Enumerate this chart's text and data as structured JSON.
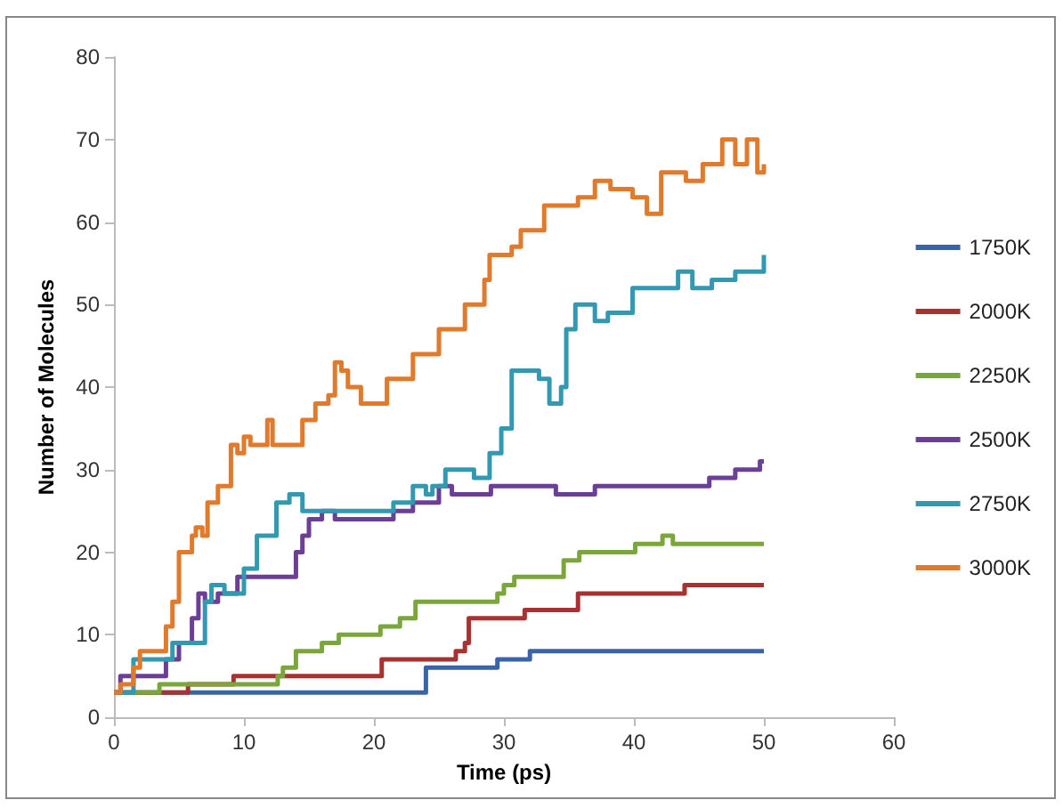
{
  "chart_data": {
    "type": "step",
    "xlabel": "Time (ps)",
    "ylabel": "Number of Molecules",
    "xlim": [
      0,
      60
    ],
    "xticks": [
      0,
      10,
      20,
      30,
      40,
      50,
      60
    ],
    "ylim": [
      0,
      80
    ],
    "yticks": [
      0,
      10,
      20,
      30,
      40,
      50,
      60,
      70,
      80
    ],
    "grid": false,
    "legend": "right",
    "marker": "none",
    "line_style": "solid",
    "series": [
      {
        "name": "1750K",
        "color": "#3a64a8",
        "x": [
          0,
          24,
          29.5,
          32,
          50
        ],
        "values": [
          3,
          6,
          7,
          8,
          8
        ]
      },
      {
        "name": "2000K",
        "color": "#a83232",
        "x": [
          0,
          5.7,
          9.2,
          20.6,
          26.3,
          27,
          27.3,
          31.6,
          35.7,
          43.9,
          50
        ],
        "values": [
          3,
          4,
          5,
          7,
          8,
          9,
          12,
          13,
          15,
          16,
          16
        ]
      },
      {
        "name": "2250K",
        "color": "#7aa63c",
        "x": [
          0,
          3.5,
          12.6,
          13,
          14,
          16,
          17.3,
          20.5,
          22,
          23.2,
          29.5,
          30,
          30.8,
          34.6,
          35.8,
          40.1,
          42.2,
          43,
          50
        ],
        "values": [
          3,
          4,
          5,
          6,
          8,
          9,
          10,
          11,
          12,
          14,
          15,
          16,
          17,
          19,
          20,
          21,
          22,
          21,
          21
        ]
      },
      {
        "name": "2500K",
        "color": "#6a3f95",
        "x": [
          0,
          0.5,
          3.5,
          4,
          5,
          6,
          6.5,
          7,
          8,
          9.5,
          14,
          14.5,
          15,
          16,
          17,
          21.5,
          23,
          25,
          26,
          29,
          34,
          37,
          45.8,
          47.8,
          49.7,
          50
        ],
        "values": [
          3,
          5,
          5,
          7,
          9,
          12,
          15,
          14,
          15,
          17,
          20,
          22,
          24,
          25,
          24,
          25,
          26,
          28,
          27,
          28,
          27,
          28,
          29,
          30,
          31,
          31
        ]
      },
      {
        "name": "2750K",
        "color": "#3399b0",
        "x": [
          0,
          1.5,
          4.5,
          7,
          7.5,
          8.5,
          10,
          11,
          12.5,
          13.5,
          14.5,
          21.5,
          23,
          24,
          24.5,
          25.5,
          27.2,
          27.7,
          28.9,
          29.8,
          30.6,
          32.7,
          33.5,
          34.4,
          34.8,
          35.5,
          37,
          38,
          39.9,
          43.4,
          44.5,
          46,
          47.8,
          50
        ],
        "values": [
          3,
          7,
          9,
          14,
          16,
          15,
          18,
          22,
          26,
          27,
          25,
          26,
          28,
          27,
          28,
          30,
          30,
          29,
          32,
          35,
          42,
          41,
          38,
          40,
          47,
          50,
          48,
          49,
          52,
          54,
          52,
          53,
          54,
          56
        ]
      },
      {
        "name": "3000K",
        "color": "#e07a2c",
        "x": [
          0,
          0.5,
          1.5,
          2,
          3.7,
          4,
          4.5,
          5,
          6,
          6.3,
          6.8,
          7.2,
          8,
          9,
          9.5,
          10,
          10.5,
          11.8,
          12.2,
          14.5,
          15.5,
          16.5,
          17,
          17.5,
          18,
          19,
          21,
          23,
          25,
          27,
          28.5,
          28.9,
          30.6,
          31.3,
          33.1,
          35.7,
          37,
          38.2,
          39.9,
          41,
          42.1,
          44,
          45.3,
          46.8,
          47.8,
          48.7,
          49.5,
          50
        ],
        "values": [
          3,
          4,
          6,
          8,
          8,
          11,
          14,
          20,
          22,
          23,
          22,
          26,
          28,
          33,
          32,
          34,
          33,
          36,
          33,
          36,
          38,
          39,
          43,
          42,
          40,
          38,
          41,
          44,
          47,
          50,
          53,
          56,
          57,
          59,
          62,
          63,
          65,
          64,
          63,
          61,
          66,
          65,
          67,
          70,
          67,
          70,
          66,
          67
        ]
      }
    ]
  }
}
